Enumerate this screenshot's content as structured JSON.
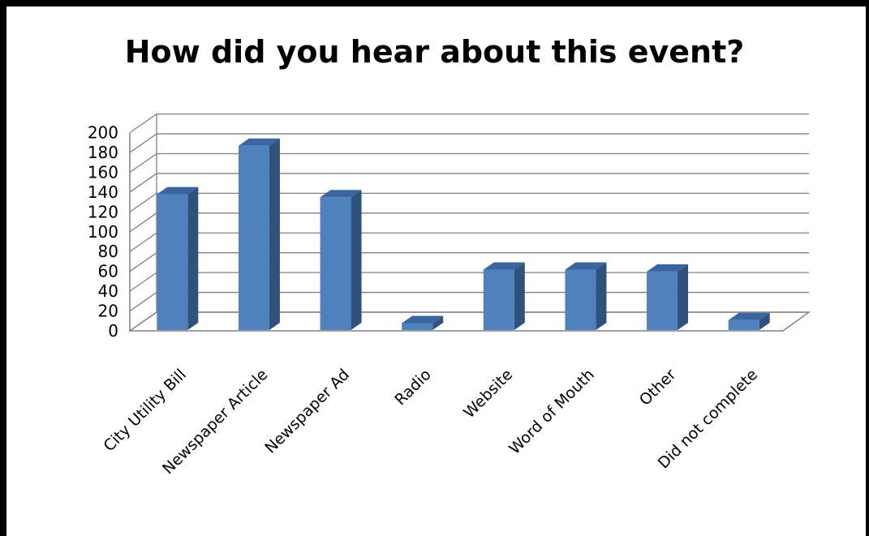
{
  "chart_data": {
    "type": "bar",
    "title": "How did you hear about this event?",
    "categories": [
      "City Utility Bill",
      "Newspaper Article",
      "Newspaper Ad",
      "Radio",
      "Website",
      "Word of Mouth",
      "Other",
      "Did not complete"
    ],
    "values": [
      137,
      186,
      134,
      7,
      61,
      61,
      59,
      10
    ],
    "ylim": [
      0,
      200
    ],
    "yticks": [
      "0",
      "20",
      "40",
      "60",
      "80",
      "100",
      "120",
      "140",
      "160",
      "180",
      "200"
    ],
    "grid": true,
    "style": "3d-column",
    "colors": {
      "bar_front": "#4f81bd",
      "bar_side": "#2f527c",
      "bar_top": "#3a659e",
      "grid": "#808080"
    }
  }
}
